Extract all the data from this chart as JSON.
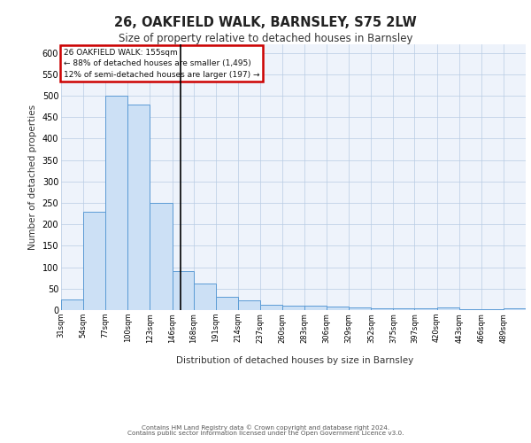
{
  "title1": "26, OAKFIELD WALK, BARNSLEY, S75 2LW",
  "title2": "Size of property relative to detached houses in Barnsley",
  "xlabel": "Distribution of detached houses by size in Barnsley",
  "ylabel": "Number of detached properties",
  "footer1": "Contains HM Land Registry data © Crown copyright and database right 2024.",
  "footer2": "Contains public sector information licensed under the Open Government Licence v3.0.",
  "annotation_title": "26 OAKFIELD WALK: 155sqm",
  "annotation_line1": "← 88% of detached houses are smaller (1,495)",
  "annotation_line2": "12% of semi-detached houses are larger (197) →",
  "property_size": 155,
  "bar_color": "#cce0f5",
  "bar_edge_color": "#5b9bd5",
  "vline_color": "#000000",
  "background_color": "#eef3fb",
  "annotation_box_color": "#ffffff",
  "annotation_box_edge": "#cc0000",
  "categories": [
    "31sqm",
    "54sqm",
    "77sqm",
    "100sqm",
    "123sqm",
    "146sqm",
    "168sqm",
    "191sqm",
    "214sqm",
    "237sqm",
    "260sqm",
    "283sqm",
    "306sqm",
    "329sqm",
    "352sqm",
    "375sqm",
    "397sqm",
    "420sqm",
    "443sqm",
    "466sqm",
    "489sqm"
  ],
  "bin_edges": [
    31,
    54,
    77,
    100,
    123,
    146,
    168,
    191,
    214,
    237,
    260,
    283,
    306,
    329,
    352,
    375,
    397,
    420,
    443,
    466,
    489,
    512
  ],
  "values": [
    25,
    230,
    500,
    480,
    250,
    90,
    62,
    30,
    22,
    12,
    10,
    10,
    8,
    6,
    5,
    4,
    4,
    6,
    3,
    2,
    5
  ],
  "ylim": [
    0,
    620
  ],
  "yticks": [
    0,
    50,
    100,
    150,
    200,
    250,
    300,
    350,
    400,
    450,
    500,
    550,
    600
  ]
}
